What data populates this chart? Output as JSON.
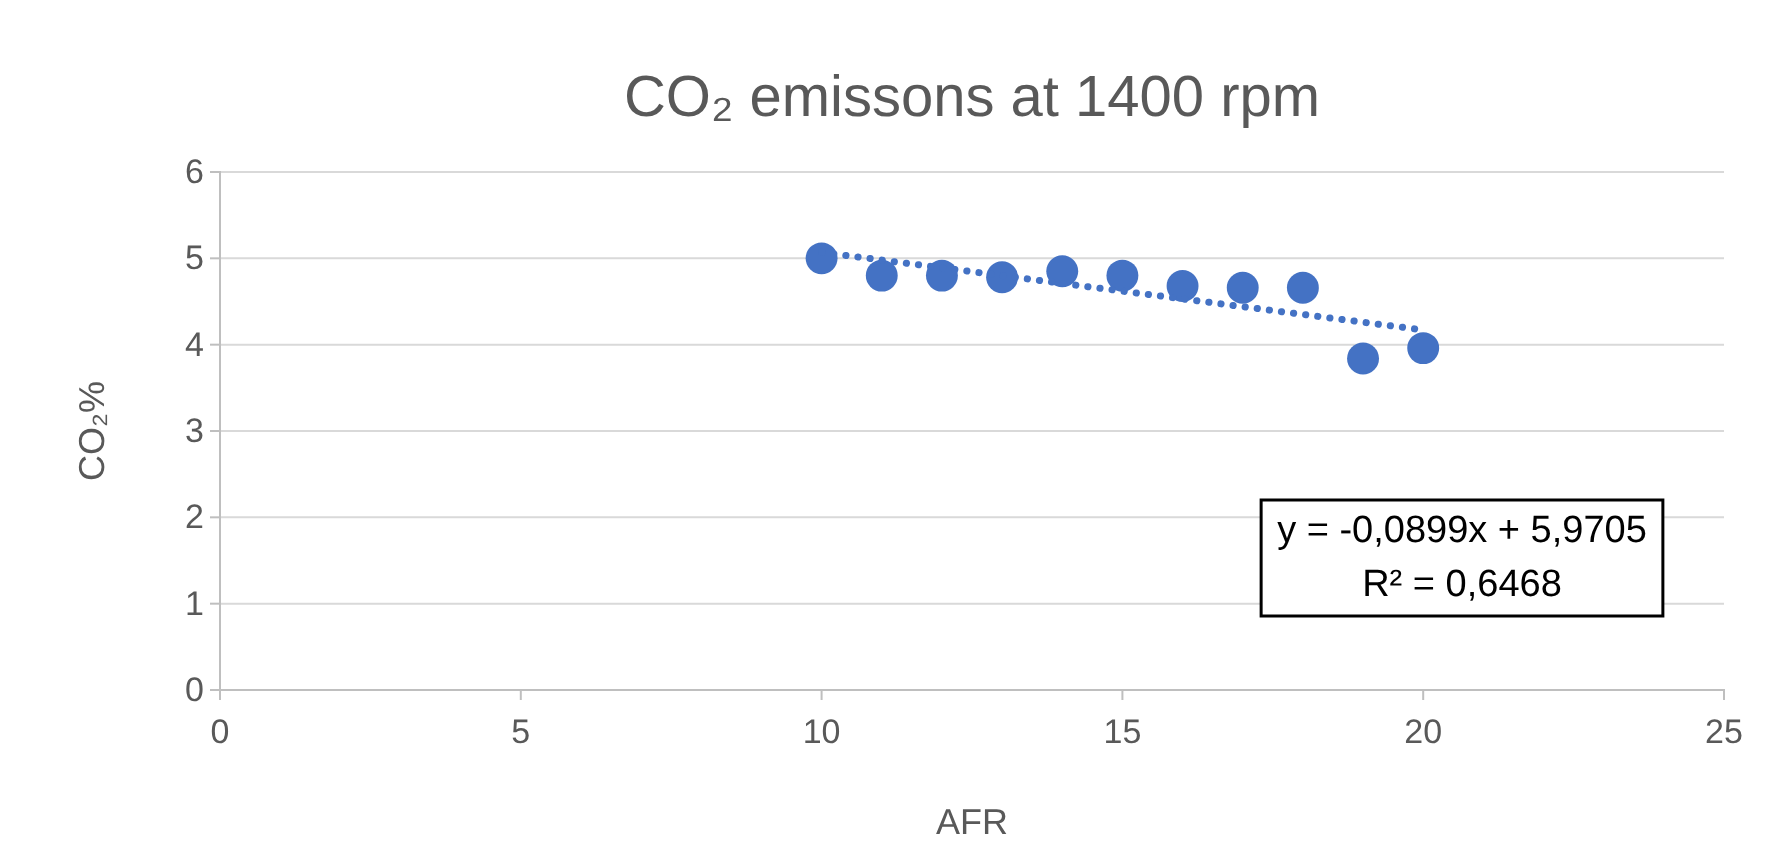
{
  "chart_data": {
    "type": "scatter",
    "title": "CO₂ emissons at 1400 rpm",
    "xlabel": "AFR",
    "ylabel": "CO₂%",
    "xlim": [
      0,
      25
    ],
    "xticks": [
      0,
      5,
      10,
      15,
      20,
      25
    ],
    "ylim": [
      0,
      6
    ],
    "yticks": [
      0,
      1,
      2,
      3,
      4,
      5,
      6
    ],
    "grid": "y",
    "marker": "circle",
    "series": [
      {
        "color": "#4472c4",
        "x": [
          10,
          11,
          12,
          13,
          14,
          15,
          16,
          17,
          18,
          19,
          20
        ],
        "values": [
          5.0,
          4.8,
          4.8,
          4.78,
          4.85,
          4.8,
          4.68,
          4.66,
          4.66,
          3.84,
          3.96
        ]
      },
      {
        "type": "line",
        "color": "#4472c4",
        "line_style": "dotted",
        "marker": "none",
        "x": [
          10,
          20
        ],
        "values": [
          5.07,
          4.17
        ]
      }
    ],
    "annotations": [
      "y = -0,0899x + 5,9705",
      "R² = 0,6468"
    ]
  }
}
